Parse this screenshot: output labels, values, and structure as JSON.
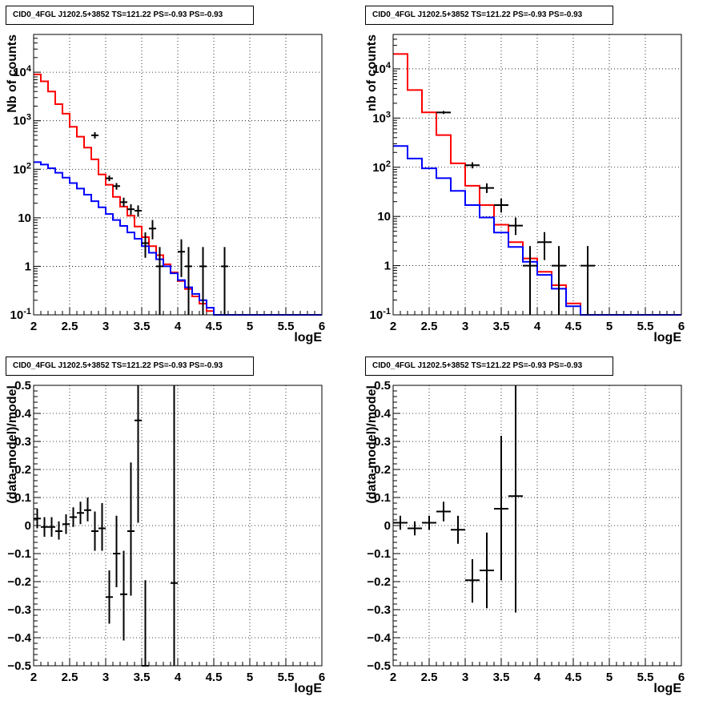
{
  "panels_title": "CID0_4FGL J1202.5+3852 TS=121.22 PS=-0.93 PS=-0.93",
  "colors": {
    "data": "#000000",
    "total_model": "#ff0000",
    "background_model": "#0000ff",
    "grid": "#000000"
  },
  "chart_data": [
    {
      "type": "line",
      "title": "CID0_4FGL J1202.5+3852 TS=121.22 PS=-0.93 PS=-0.93",
      "xlabel": "logE",
      "ylabel": "Nb of counts",
      "xlim": [
        2,
        6
      ],
      "ylim": [
        0.1,
        60000
      ],
      "yscale": "log",
      "grid": true,
      "x_ticks": [
        "2",
        "2.5",
        "3",
        "3.5",
        "4",
        "4.5",
        "5",
        "5.5",
        "6"
      ],
      "y_ticks": [
        {
          "v": 0.1,
          "label": "10^-1"
        },
        {
          "v": 1,
          "label": "1"
        },
        {
          "v": 10,
          "label": "10"
        },
        {
          "v": 100,
          "label": "10^2"
        },
        {
          "v": 1000,
          "label": "10^3"
        },
        {
          "v": 10000,
          "label": "10^4"
        }
      ],
      "bin_edges": [
        2.0,
        2.1,
        2.2,
        2.3,
        2.4,
        2.5,
        2.6,
        2.7,
        2.8,
        2.9,
        3.0,
        3.1,
        3.2,
        3.3,
        3.4,
        3.5,
        3.6,
        3.7,
        3.8,
        3.9,
        4.0,
        4.1,
        4.2,
        4.3,
        4.4,
        4.5,
        4.6,
        4.7,
        4.8,
        4.9,
        5.0,
        5.1,
        5.2,
        5.3,
        5.4,
        5.5,
        5.6,
        5.7,
        5.8,
        5.9,
        6.0
      ],
      "series": [
        {
          "role": "total_model",
          "color": "#ff0000",
          "values": [
            9000,
            6500,
            4000,
            2200,
            1400,
            750,
            470,
            280,
            160,
            78,
            48,
            27,
            17,
            11,
            6.6,
            4,
            2.6,
            1.7,
            1.1,
            0.75,
            0.5,
            0.34,
            0.24,
            0.17,
            0.12,
            0.09,
            0.1,
            0.1,
            0.1,
            0.1,
            0.1,
            0.1,
            0.1,
            0.1,
            0.1,
            0.1,
            0.1,
            0.1,
            0.1,
            0.1
          ]
        },
        {
          "role": "background_model",
          "color": "#0000ff",
          "values": [
            140,
            125,
            105,
            85,
            67,
            52,
            40,
            30,
            22,
            16.5,
            12,
            9,
            6.8,
            5,
            3.7,
            2.6,
            1.9,
            1.4,
            1.0,
            0.72,
            0.52,
            0.37,
            0.27,
            0.2,
            0.14,
            0.1,
            0.1,
            0.1,
            0.1,
            0.1,
            0.1,
            0.1,
            0.1,
            0.1,
            0.1,
            0.1,
            0.1,
            0.1,
            0.1,
            0.1
          ]
        }
      ],
      "points": [
        {
          "x": 2.85,
          "y": 500,
          "lo": 430,
          "hi": 580
        },
        {
          "x": 3.05,
          "y": 65,
          "lo": 57,
          "hi": 74
        },
        {
          "x": 3.15,
          "y": 45,
          "lo": 38,
          "hi": 52
        },
        {
          "x": 3.25,
          "y": 21,
          "lo": 17,
          "hi": 26
        },
        {
          "x": 3.35,
          "y": 15,
          "lo": 11.5,
          "hi": 19
        },
        {
          "x": 3.45,
          "y": 14,
          "lo": 10.5,
          "hi": 18
        },
        {
          "x": 3.55,
          "y": 3,
          "lo": 1.5,
          "hi": 5
        },
        {
          "x": 3.65,
          "y": 6,
          "lo": 3.6,
          "hi": 9
        },
        {
          "x": 3.75,
          "y": 1,
          "lo": 0.1,
          "hi": 2.5
        },
        {
          "x": 4.05,
          "y": 2,
          "lo": 0.6,
          "hi": 3.6
        },
        {
          "x": 4.15,
          "y": 1,
          "lo": 0.1,
          "hi": 2.5
        },
        {
          "x": 4.35,
          "y": 1,
          "lo": 0.1,
          "hi": 2.5
        },
        {
          "x": 4.65,
          "y": 1,
          "lo": 0.1,
          "hi": 2.5
        }
      ]
    },
    {
      "type": "line",
      "title": "CID0_4FGL J1202.5+3852 TS=121.22 PS=-0.93 PS=-0.93",
      "xlabel": "logE",
      "ylabel": "nb of counts",
      "xlim": [
        2,
        6
      ],
      "ylim": [
        0.1,
        50000
      ],
      "yscale": "log",
      "grid": true,
      "x_ticks": [
        "2",
        "2.5",
        "3",
        "3.5",
        "4",
        "4.5",
        "5",
        "5.5",
        "6"
      ],
      "y_ticks": [
        {
          "v": 0.1,
          "label": "10^-1"
        },
        {
          "v": 1,
          "label": "1"
        },
        {
          "v": 10,
          "label": "10"
        },
        {
          "v": 100,
          "label": "10^2"
        },
        {
          "v": 1000,
          "label": "10^3"
        },
        {
          "v": 10000,
          "label": "10^4"
        }
      ],
      "bin_edges": [
        2.0,
        2.2,
        2.4,
        2.6,
        2.8,
        3.0,
        3.2,
        3.4,
        3.6,
        3.8,
        4.0,
        4.2,
        4.4,
        4.6,
        4.8,
        5.0,
        5.2,
        5.4,
        5.6,
        5.8,
        6.0
      ],
      "series": [
        {
          "role": "total_model",
          "color": "#ff0000",
          "values": [
            20000,
            3700,
            1300,
            450,
            120,
            42,
            17,
            6.8,
            3.0,
            1.4,
            0.75,
            0.4,
            0.17,
            0.1,
            0.1,
            0.1,
            0.1,
            0.1,
            0.1,
            0.1
          ]
        },
        {
          "role": "background_model",
          "color": "#0000ff",
          "values": [
            270,
            150,
            95,
            60,
            33,
            17,
            9.5,
            4.7,
            2.4,
            1.2,
            0.65,
            0.34,
            0.15,
            0.1,
            0.1,
            0.1,
            0.1,
            0.1,
            0.1,
            0.1
          ]
        }
      ],
      "points": [
        {
          "x": 2.7,
          "y": 1300,
          "lo": 1210,
          "hi": 1390
        },
        {
          "x": 3.1,
          "y": 110,
          "lo": 95,
          "hi": 126
        },
        {
          "x": 3.3,
          "y": 38,
          "lo": 30,
          "hi": 47
        },
        {
          "x": 3.5,
          "y": 17,
          "lo": 12,
          "hi": 23
        },
        {
          "x": 3.7,
          "y": 6.5,
          "lo": 4.2,
          "hi": 9.5
        },
        {
          "x": 3.9,
          "y": 1,
          "lo": 0.1,
          "hi": 2.5
        },
        {
          "x": 4.1,
          "y": 3,
          "lo": 1.3,
          "hi": 4.8
        },
        {
          "x": 4.3,
          "y": 1,
          "lo": 0.1,
          "hi": 2.5
        },
        {
          "x": 4.7,
          "y": 1,
          "lo": 0.1,
          "hi": 2.5
        }
      ]
    },
    {
      "type": "scatter",
      "title": "CID0_4FGL J1202.5+3852 TS=121.22 PS=-0.93 PS=-0.93",
      "xlabel": "logE",
      "ylabel": "(data-model)/model",
      "xlim": [
        2,
        6
      ],
      "ylim": [
        -0.5,
        0.5
      ],
      "yscale": "linear",
      "grid": true,
      "x_ticks": [
        "2",
        "2.5",
        "3",
        "3.5",
        "4",
        "4.5",
        "5",
        "5.5",
        "6"
      ],
      "y_ticks": [
        {
          "v": -0.5,
          "label": "−0.5"
        },
        {
          "v": -0.4,
          "label": "−0.4"
        },
        {
          "v": -0.3,
          "label": "−0.3"
        },
        {
          "v": -0.2,
          "label": "−0.2"
        },
        {
          "v": -0.1,
          "label": "−0.1"
        },
        {
          "v": 0,
          "label": "0"
        },
        {
          "v": 0.1,
          "label": "0.1"
        },
        {
          "v": 0.2,
          "label": "0.2"
        },
        {
          "v": 0.3,
          "label": "0.3"
        },
        {
          "v": 0.4,
          "label": "0.4"
        },
        {
          "v": 0.5,
          "label": "0.5"
        }
      ],
      "bin_width": 0.1,
      "points": [
        {
          "x": 2.05,
          "y": 0.025,
          "lo": -0.01,
          "hi": 0.06
        },
        {
          "x": 2.15,
          "y": -0.005,
          "lo": -0.04,
          "hi": 0.03
        },
        {
          "x": 2.25,
          "y": -0.005,
          "lo": -0.04,
          "hi": 0.03
        },
        {
          "x": 2.35,
          "y": -0.02,
          "lo": -0.05,
          "hi": 0.015
        },
        {
          "x": 2.45,
          "y": 0.005,
          "lo": -0.03,
          "hi": 0.04
        },
        {
          "x": 2.55,
          "y": 0.03,
          "lo": -0.005,
          "hi": 0.065
        },
        {
          "x": 2.65,
          "y": 0.045,
          "lo": 0.005,
          "hi": 0.085
        },
        {
          "x": 2.75,
          "y": 0.055,
          "lo": 0.015,
          "hi": 0.1
        },
        {
          "x": 2.85,
          "y": -0.02,
          "lo": -0.09,
          "hi": 0.05
        },
        {
          "x": 2.95,
          "y": -0.01,
          "lo": -0.09,
          "hi": 0.08
        },
        {
          "x": 3.05,
          "y": -0.255,
          "lo": -0.35,
          "hi": -0.16
        },
        {
          "x": 3.15,
          "y": -0.1,
          "lo": -0.22,
          "hi": 0.035
        },
        {
          "x": 3.25,
          "y": -0.245,
          "lo": -0.41,
          "hi": -0.09
        },
        {
          "x": 3.35,
          "y": -0.02,
          "lo": -0.25,
          "hi": 0.225
        },
        {
          "x": 3.45,
          "y": 0.375,
          "lo": 0.01,
          "hi": 0.5
        },
        {
          "x": 3.55,
          "y": -0.5,
          "lo": -0.5,
          "hi": -0.195
        },
        {
          "x": 3.95,
          "y": -0.205,
          "lo": -0.5,
          "hi": 0.5
        }
      ]
    },
    {
      "type": "scatter",
      "title": "CID0_4FGL J1202.5+3852 TS=121.22 PS=-0.93 PS=-0.93",
      "xlabel": "logE",
      "ylabel": "(data-model)/model",
      "xlim": [
        2,
        6
      ],
      "ylim": [
        -0.5,
        0.5
      ],
      "yscale": "linear",
      "grid": true,
      "x_ticks": [
        "2",
        "2.5",
        "3",
        "3.5",
        "4",
        "4.5",
        "5",
        "5.5",
        "6"
      ],
      "y_ticks": [
        {
          "v": -0.5,
          "label": "−0.5"
        },
        {
          "v": -0.4,
          "label": "−0.4"
        },
        {
          "v": -0.3,
          "label": "−0.3"
        },
        {
          "v": -0.2,
          "label": "−0.2"
        },
        {
          "v": -0.1,
          "label": "−0.1"
        },
        {
          "v": 0,
          "label": "0"
        },
        {
          "v": 0.1,
          "label": "0.1"
        },
        {
          "v": 0.2,
          "label": "0.2"
        },
        {
          "v": 0.3,
          "label": "0.3"
        },
        {
          "v": 0.4,
          "label": "0.4"
        },
        {
          "v": 0.5,
          "label": "0.5"
        }
      ],
      "bin_width": 0.2,
      "points": [
        {
          "x": 2.1,
          "y": 0.01,
          "lo": -0.015,
          "hi": 0.035
        },
        {
          "x": 2.3,
          "y": -0.01,
          "lo": -0.035,
          "hi": 0.015
        },
        {
          "x": 2.5,
          "y": 0.01,
          "lo": -0.015,
          "hi": 0.035
        },
        {
          "x": 2.7,
          "y": 0.05,
          "lo": 0.015,
          "hi": 0.085
        },
        {
          "x": 2.9,
          "y": -0.015,
          "lo": -0.065,
          "hi": 0.035
        },
        {
          "x": 3.1,
          "y": -0.195,
          "lo": -0.275,
          "hi": -0.12
        },
        {
          "x": 3.3,
          "y": -0.16,
          "lo": -0.295,
          "hi": -0.025
        },
        {
          "x": 3.5,
          "y": 0.06,
          "lo": -0.195,
          "hi": 0.32
        },
        {
          "x": 3.7,
          "y": 0.105,
          "lo": -0.31,
          "hi": 0.5
        }
      ]
    }
  ]
}
